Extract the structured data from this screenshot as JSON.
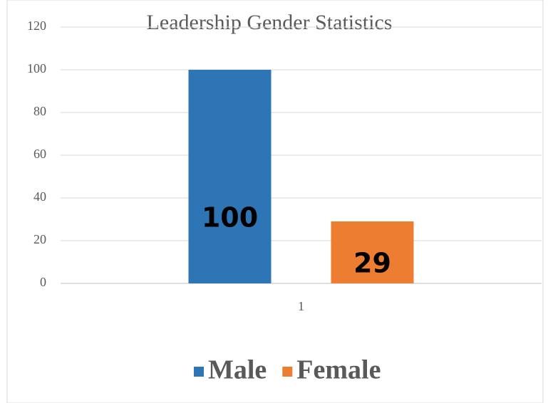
{
  "chart_data": {
    "type": "bar",
    "title": "Leadership Gender Statistics",
    "categories": [
      "1"
    ],
    "series": [
      {
        "name": "Male",
        "color": "#2e75b6",
        "values": [
          100
        ]
      },
      {
        "name": "Female",
        "color": "#ed7d31",
        "values": [
          29
        ]
      }
    ],
    "ylim": [
      0,
      120
    ],
    "yticks": [
      0,
      20,
      40,
      60,
      80,
      100,
      120
    ],
    "grid": true,
    "legend": "bottom"
  }
}
